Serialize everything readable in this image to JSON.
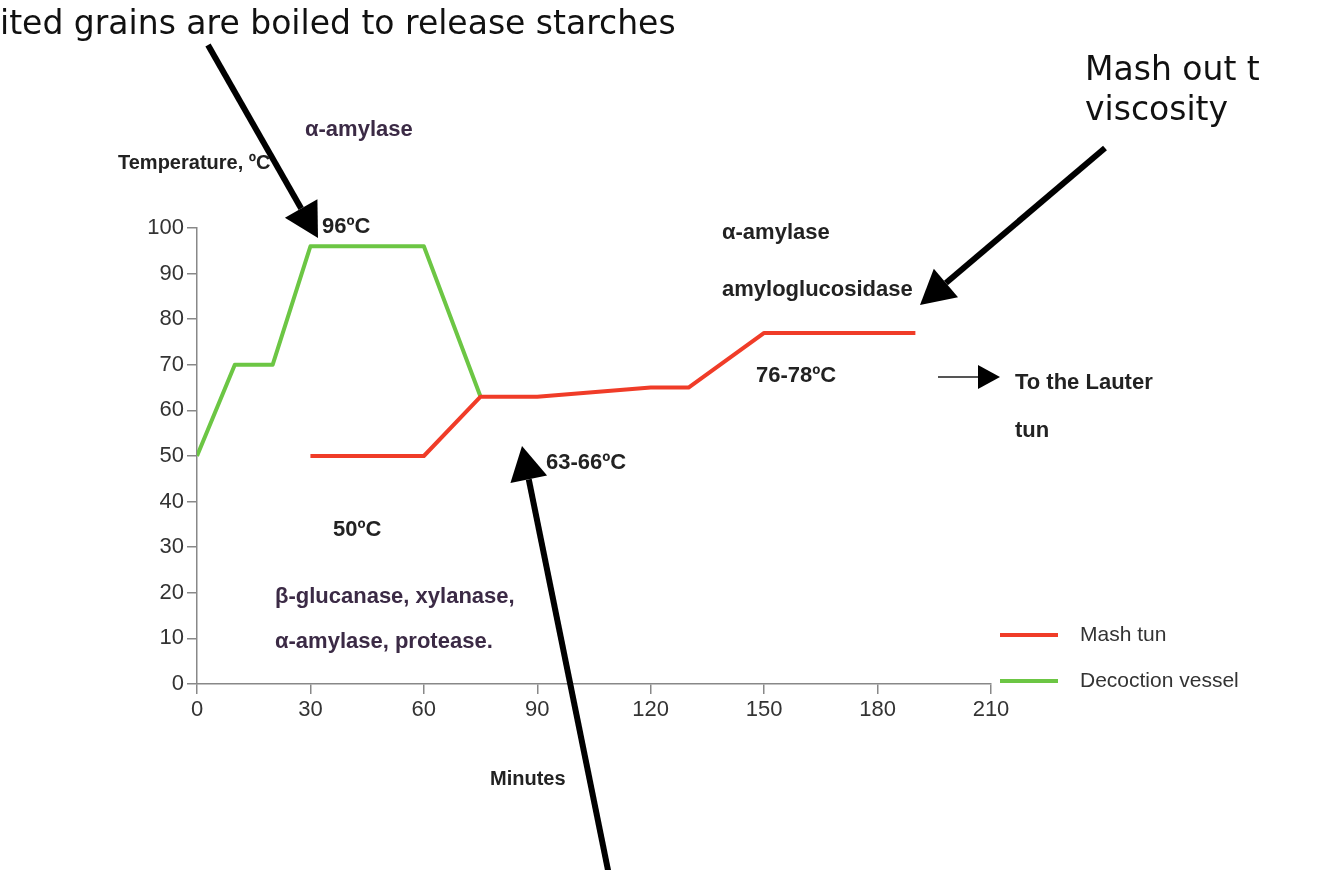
{
  "chart_data": {
    "type": "line",
    "xlabel": "Minutes",
    "ylabel": "Temperature, ºC",
    "xlim": [
      0,
      210
    ],
    "xticks": [
      0,
      30,
      60,
      90,
      120,
      150,
      180,
      210
    ],
    "ylim": [
      0,
      100
    ],
    "yticks": [
      0,
      10,
      20,
      30,
      40,
      50,
      60,
      70,
      80,
      90,
      100
    ],
    "grid": false,
    "legend": "bottom right",
    "marker": "none",
    "line_style": "solid",
    "series": [
      {
        "name": "Mash tun",
        "color": "#f03c28",
        "x": [
          30,
          60,
          75,
          90,
          120,
          130,
          150,
          190
        ],
        "values": [
          50,
          50,
          63,
          63,
          65,
          65,
          77,
          77
        ]
      },
      {
        "name": "Decoction vessel",
        "color": "#6cc644",
        "x": [
          0,
          10,
          20,
          30,
          60,
          75
        ],
        "values": [
          50,
          70,
          70,
          96,
          96,
          63
        ]
      }
    ],
    "annotations": [
      "ited grains are boiled to release starches",
      "Mash out t",
      "viscosity",
      "α-amylase",
      "96ºC",
      "α-amylase",
      "amyloglucosidase",
      "76-78ºC",
      "To the Lauter",
      "tun",
      "63-66ºC",
      "50ºC",
      "β-glucanase, xylanase,",
      "α-amylase, protease."
    ]
  }
}
